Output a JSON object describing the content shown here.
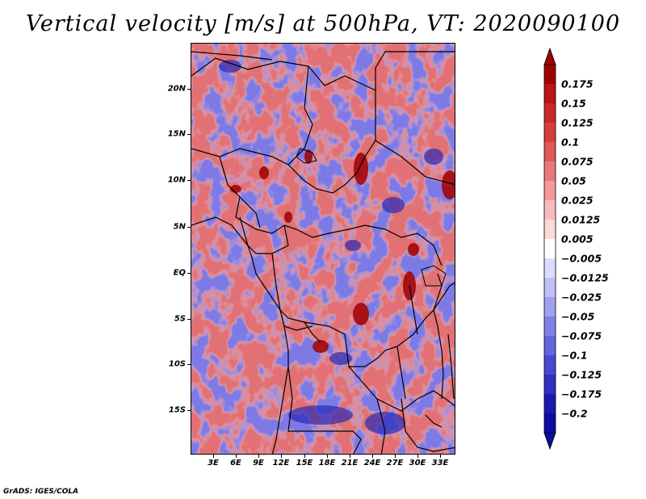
{
  "title": "Vertical velocity [m/s] at 500hPa, VT: 2020090100",
  "footer": "GrADS: IGES/COLA",
  "lat_labels": [
    "20N",
    "15N",
    "10N",
    "5N",
    "EQ",
    "5S",
    "10S",
    "15S"
  ],
  "lon_labels": [
    "3E",
    "6E",
    "9E",
    "12E",
    "15E",
    "18E",
    "21E",
    "24E",
    "27E",
    "30E",
    "33E"
  ],
  "colorbar": {
    "labels": [
      "0.175",
      "0.15",
      "0.125",
      "0.1",
      "0.075",
      "0.05",
      "0.025",
      "0.0125",
      "0.005",
      "−0.005",
      "−0.0125",
      "−0.025",
      "−0.05",
      "−0.075",
      "−0.1",
      "−0.125",
      "−0.175",
      "−0.2"
    ],
    "colors": [
      "#a00000",
      "#b81515",
      "#c82828",
      "#d83c3c",
      "#e05858",
      "#e87878",
      "#f29898",
      "#f8baba",
      "#fcd9d9",
      "#ffffff",
      "#dcdcfc",
      "#c0c0f8",
      "#a0a0f0",
      "#8080e8",
      "#6464e0",
      "#4848d0",
      "#3030c0",
      "#1a1ab0",
      "#0c0ca0"
    ],
    "top_color": "#a00000",
    "bottom_color": "#0c0ca0"
  }
}
